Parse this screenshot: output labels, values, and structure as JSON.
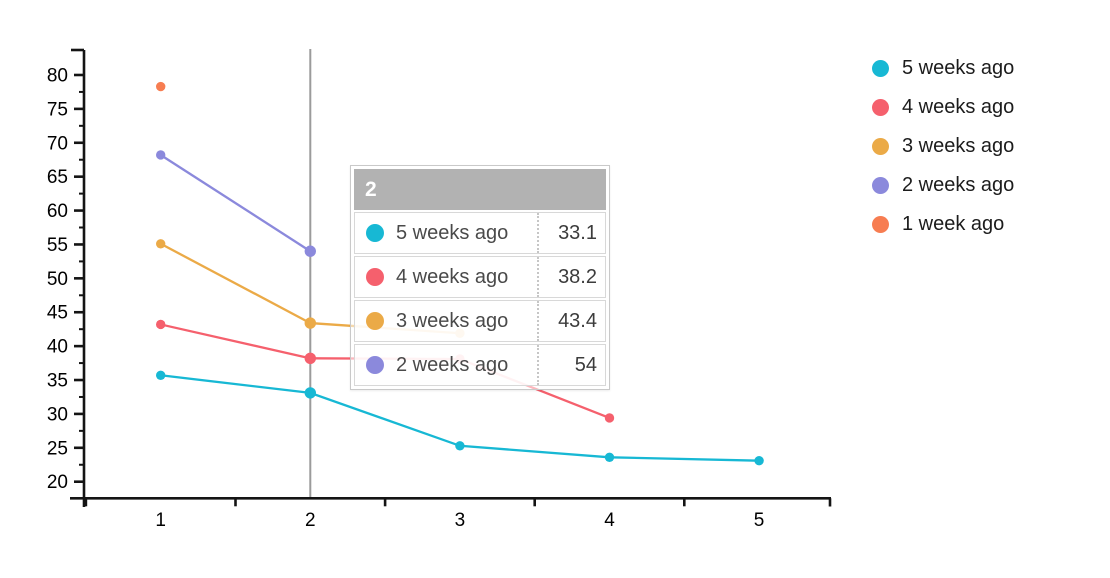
{
  "chart_data": {
    "type": "line",
    "title": "",
    "xlabel": "",
    "ylabel": "",
    "categories": [
      "1",
      "2",
      "3",
      "4",
      "5"
    ],
    "series": [
      {
        "name": "5 weeks ago",
        "color": "#17b8d4",
        "values": [
          35.7,
          33.1,
          25.3,
          23.6,
          23.1
        ]
      },
      {
        "name": "4 weeks ago",
        "color": "#f5606d",
        "values": [
          43.2,
          38.2,
          38.1,
          29.4
        ]
      },
      {
        "name": "3 weeks ago",
        "color": "#ebaa47",
        "values": [
          55.1,
          43.4,
          41.9
        ]
      },
      {
        "name": "2 weeks ago",
        "color": "#8b89dc",
        "values": [
          68.2,
          54
        ]
      },
      {
        "name": "1 week ago",
        "color": "#f77d51",
        "values": [
          78.3
        ]
      }
    ],
    "ylim": [
      20,
      80
    ],
    "yticks": [
      20,
      25,
      30,
      35,
      40,
      45,
      50,
      55,
      60,
      65,
      70,
      75,
      80
    ],
    "minor_ytick_step": 2.5,
    "grid": false,
    "legend_position": "right",
    "marker_x": "2",
    "marker_color": "#9b9b9b",
    "axis_color": "#141414"
  },
  "tooltip": {
    "title": "2",
    "header_bg": "#b2b2b2",
    "rows": [
      {
        "label": "5 weeks ago",
        "value": "33.1",
        "color": "#17b8d4"
      },
      {
        "label": "4 weeks ago",
        "value": "38.2",
        "color": "#f5606d"
      },
      {
        "label": "3 weeks ago",
        "value": "43.4",
        "color": "#ebaa47"
      },
      {
        "label": "2 weeks ago",
        "value": "54",
        "color": "#8b89dc"
      }
    ]
  },
  "legend": {
    "items": [
      {
        "label": "5 weeks ago",
        "color": "#17b8d4"
      },
      {
        "label": "4 weeks ago",
        "color": "#f5606d"
      },
      {
        "label": "3 weeks ago",
        "color": "#ebaa47"
      },
      {
        "label": "2 weeks ago",
        "color": "#8b89dc"
      },
      {
        "label": "1 week ago",
        "color": "#f77d51"
      }
    ]
  }
}
